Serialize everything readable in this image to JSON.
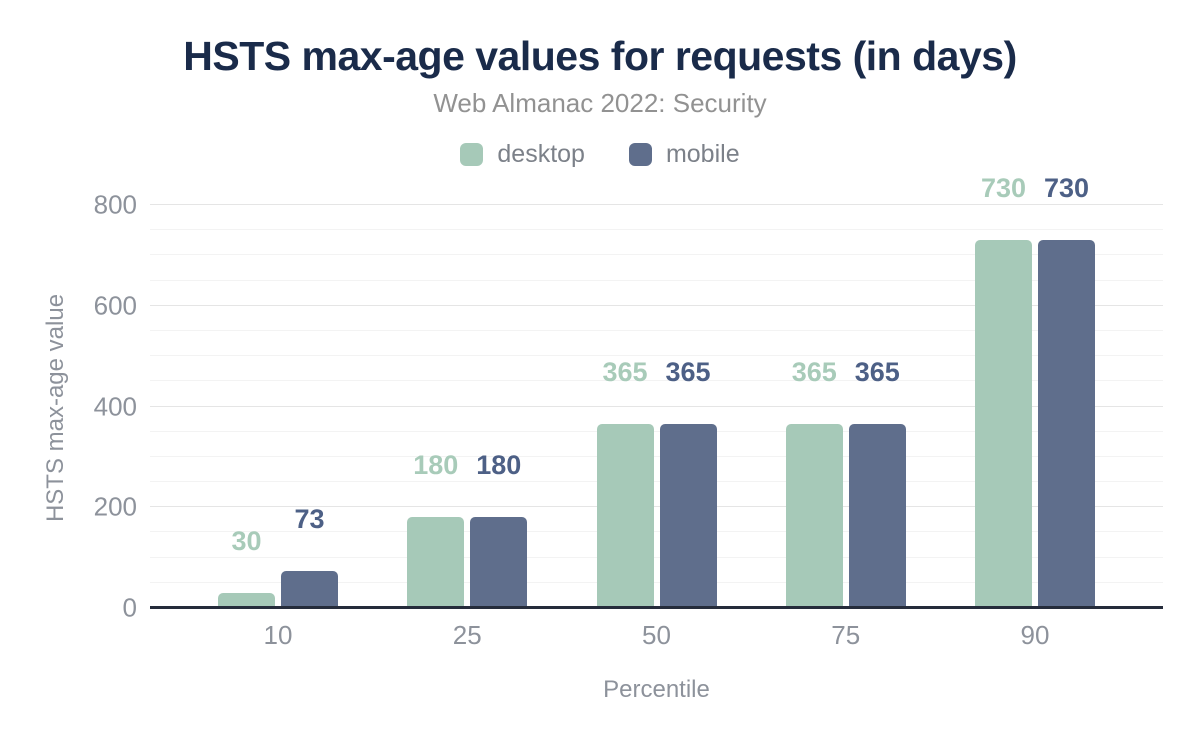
{
  "page": {
    "background_color": "#ffffff"
  },
  "header": {
    "title": "HSTS max-age values for requests (in days)",
    "title_color": "#1a2b4a",
    "subtitle": "Web Almanac 2022: Security",
    "subtitle_color": "#929292"
  },
  "legend": {
    "items": [
      {
        "label": "desktop",
        "color": "#a6c9b8"
      },
      {
        "label": "mobile",
        "color": "#5f6e8c"
      }
    ]
  },
  "axes": {
    "x_title": "Percentile",
    "y_title": "HSTS max-age value",
    "axis_line_color": "#252c3b",
    "tick_color": "#8d929b"
  },
  "chart_data": {
    "type": "bar",
    "title": "HSTS max-age values for requests (in days)",
    "subtitle": "Web Almanac 2022: Security",
    "categories": [
      "10",
      "25",
      "50",
      "75",
      "90"
    ],
    "series": [
      {
        "name": "desktop",
        "color": "#a6c9b8",
        "label_color": "#a8cbb9",
        "values": [
          30,
          180,
          365,
          365,
          730
        ]
      },
      {
        "name": "mobile",
        "color": "#5f6e8c",
        "label_color": "#4d6086",
        "values": [
          73,
          180,
          365,
          365,
          730
        ]
      }
    ],
    "data_labels": true,
    "xlabel": "Percentile",
    "ylabel": "HSTS max-age value",
    "ylim": [
      0,
      800
    ],
    "yticks": [
      0,
      200,
      400,
      600,
      800
    ],
    "grid_minor_step": 50,
    "grid_major_step": 200,
    "grid": true,
    "legend_position": "top"
  }
}
